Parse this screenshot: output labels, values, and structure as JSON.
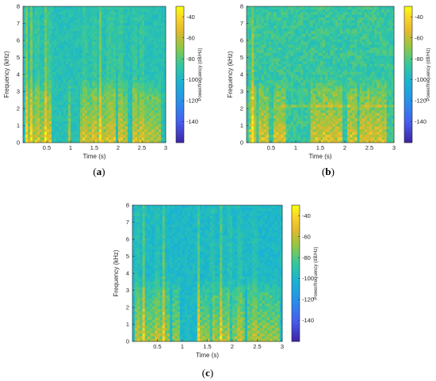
{
  "colors": {
    "low": "#3d26a8",
    "mid": "#17b1cd",
    "high": "#f9fb0e",
    "background": "#1f9fd8"
  },
  "chart_data": [
    {
      "type": "heatmap",
      "panel": "(a)",
      "panel_letter": "a",
      "xlabel": "Time (s)",
      "ylabel": "Frequency (kHz)",
      "xlim": [
        0,
        3
      ],
      "ylim": [
        0,
        8
      ],
      "x_ticks": [
        0.5,
        1,
        1.5,
        2,
        2.5,
        3
      ],
      "y_ticks": [
        0,
        1,
        2,
        3,
        4,
        5,
        6,
        7,
        8
      ],
      "colorbar": {
        "label": "Power/frequency (dB/Hz)",
        "ticks": [
          -40,
          -60,
          -80,
          -100,
          -120,
          -140
        ],
        "range": [
          -160,
          -30
        ],
        "colormap": "parula"
      },
      "background_level_db": -92,
      "noise_db": 6,
      "speech_segments": [
        [
          0.05,
          0.62
        ],
        [
          0.95,
          1.02
        ],
        [
          1.22,
          1.95
        ],
        [
          2.02,
          2.18
        ],
        [
          2.3,
          2.88
        ]
      ],
      "strong_columns": [
        0.08,
        0.18,
        0.3,
        0.48,
        0.55,
        1.3,
        1.5,
        1.62,
        1.8,
        1.9,
        2.05,
        2.35,
        2.5
      ]
    },
    {
      "type": "heatmap",
      "panel": "(b)",
      "panel_letter": "b",
      "xlabel": "Time (s)",
      "ylabel": "Frequency (kHz)",
      "xlim": [
        0,
        3
      ],
      "ylim": [
        0,
        8
      ],
      "x_ticks": [
        0.5,
        1,
        1.5,
        2,
        2.5,
        3
      ],
      "y_ticks": [
        0,
        1,
        2,
        3,
        4,
        5,
        6,
        7,
        8
      ],
      "colorbar": {
        "label": "Power/frequency (dB/Hz)",
        "ticks": [
          -40,
          -60,
          -80,
          -100,
          -120,
          -140
        ],
        "range": [
          -160,
          -30
        ],
        "colormap": "parula"
      },
      "background_level_db": -86,
      "noise_db": 9,
      "speech_segments": [
        [
          0.05,
          0.2
        ],
        [
          0.25,
          0.45
        ],
        [
          0.55,
          0.8
        ],
        [
          1.3,
          1.95
        ],
        [
          2.05,
          2.25
        ],
        [
          2.3,
          2.85
        ]
      ],
      "strong_columns": [
        0.12
      ],
      "horizontal_line_khz": 2.1
    },
    {
      "type": "heatmap",
      "panel": "(c)",
      "panel_letter": "c",
      "xlabel": "Time (s)",
      "ylabel": "Frequency (kHz)",
      "xlim": [
        0,
        3
      ],
      "ylim": [
        0,
        8
      ],
      "x_ticks": [
        0.5,
        1,
        1.5,
        2,
        2.5,
        3
      ],
      "y_ticks": [
        0,
        1,
        2,
        3,
        4,
        5,
        6,
        7,
        8
      ],
      "colorbar": {
        "label": "Power/frequency (dB/Hz)",
        "ticks": [
          -40,
          -60,
          -80,
          -100,
          -120,
          -140
        ],
        "range": [
          -160,
          -30
        ],
        "colormap": "parula"
      },
      "background_level_db": -98,
      "noise_db": 6,
      "speech_segments": [
        [
          0.05,
          0.75
        ],
        [
          0.8,
          0.95
        ],
        [
          1.3,
          1.55
        ],
        [
          1.6,
          1.95
        ],
        [
          2.0,
          2.25
        ],
        [
          2.3,
          2.95
        ]
      ],
      "strong_columns": [
        0.1,
        0.22,
        0.5,
        0.62,
        1.32,
        1.6,
        1.78,
        1.95,
        2.15,
        2.45
      ]
    }
  ]
}
